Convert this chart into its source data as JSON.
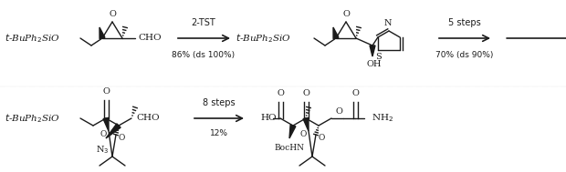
{
  "background_color": "#ffffff",
  "fig_width": 6.2,
  "fig_height": 1.89,
  "dpi": 100,
  "text_color": "#1a1a1a",
  "line_color": "#1a1a1a",
  "arrow1_label_top": "2-TST",
  "arrow1_label_bot": "86% (ds 100%)",
  "arrow2_label_top": "5 steps",
  "arrow2_label_bot": "70% (ds 90%)",
  "arrow3_label_top": "8 steps",
  "arrow3_label_bot": "12%"
}
